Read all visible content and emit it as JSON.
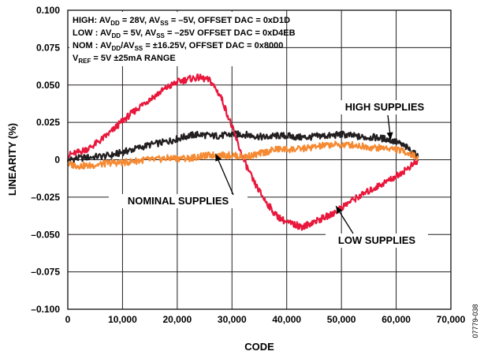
{
  "chart_data": {
    "type": "line",
    "xlabel": "CODE",
    "ylabel": "LINEARITY (%)",
    "xlim": [
      0,
      70000
    ],
    "ylim": [
      -0.1,
      0.1
    ],
    "x_ticks": [
      {
        "value": 0,
        "label": "0"
      },
      {
        "value": 10000,
        "label": "10,000"
      },
      {
        "value": 20000,
        "label": "20,000"
      },
      {
        "value": 30000,
        "label": "30,000"
      },
      {
        "value": 40000,
        "label": "40,000"
      },
      {
        "value": 50000,
        "label": "50,000"
      },
      {
        "value": 60000,
        "label": "60,000"
      },
      {
        "value": 70000,
        "label": "70,000"
      }
    ],
    "y_ticks": [
      {
        "value": 0.1,
        "label": "0.100"
      },
      {
        "value": 0.075,
        "label": "0.075"
      },
      {
        "value": 0.05,
        "label": "0.050"
      },
      {
        "value": 0.025,
        "label": "0.025"
      },
      {
        "value": 0,
        "label": "0"
      },
      {
        "value": -0.025,
        "label": "–0.025"
      },
      {
        "value": -0.05,
        "label": "–0.050"
      },
      {
        "value": -0.075,
        "label": "–0.075"
      },
      {
        "value": -0.1,
        "label": "–0.100"
      }
    ],
    "grid": true,
    "legend_box": [
      {
        "segments": [
          [
            "HIGH: AV",
            "n"
          ],
          [
            "DD",
            "s"
          ],
          [
            " = 28V, AV",
            "n"
          ],
          [
            "SS",
            "s"
          ],
          [
            " = –5V, OFFSET DAC = 0xD1D",
            "n"
          ]
        ]
      },
      {
        "segments": [
          [
            "LOW : AV",
            "n"
          ],
          [
            "DD",
            "s"
          ],
          [
            " = 5V, AV",
            "n"
          ],
          [
            "SS",
            "s"
          ],
          [
            " = –25V OFFSET DAC = 0xD4EB",
            "n"
          ]
        ]
      },
      {
        "segments": [
          [
            "NOM : AV",
            "n"
          ],
          [
            "DD",
            "s"
          ],
          [
            "/AV",
            "n"
          ],
          [
            "SS",
            "s"
          ],
          [
            " = ±16.25V, OFFSET DAC = 0x8000",
            "n"
          ]
        ]
      },
      {
        "segments": [
          [
            "V",
            "n"
          ],
          [
            "REF",
            "s"
          ],
          [
            " = 5V ±25mA RANGE",
            "n"
          ]
        ]
      }
    ],
    "series": [
      {
        "name": "HIGH SUPPLIES",
        "color": "#231f20",
        "x": [
          0,
          2000,
          5000,
          8000,
          10000,
          12000,
          15000,
          18000,
          20000,
          22000,
          24000,
          26000,
          28000,
          30000,
          32000,
          34000,
          36000,
          38000,
          40000,
          42000,
          44000,
          46000,
          48000,
          50000,
          52000,
          54000,
          56000,
          58000,
          60000,
          62000,
          64000
        ],
        "y": [
          0.0,
          0.001,
          0.002,
          0.003,
          0.005,
          0.007,
          0.01,
          0.012,
          0.014,
          0.016,
          0.017,
          0.016,
          0.016,
          0.017,
          0.017,
          0.016,
          0.015,
          0.016,
          0.016,
          0.015,
          0.015,
          0.016,
          0.016,
          0.017,
          0.016,
          0.015,
          0.015,
          0.014,
          0.012,
          0.008,
          0.002
        ]
      },
      {
        "name": "LOW SUPPLIES",
        "color": "#e8173b",
        "x": [
          0,
          2000,
          4000,
          6000,
          8000,
          10000,
          12000,
          14000,
          16000,
          18000,
          20000,
          22000,
          24000,
          26000,
          28000,
          30000,
          32000,
          34000,
          36000,
          38000,
          40000,
          42000,
          43000,
          44000,
          46000,
          48000,
          50000,
          52000,
          54000,
          56000,
          58000,
          60000,
          62000,
          64000
        ],
        "y": [
          0.003,
          0.005,
          0.008,
          0.013,
          0.019,
          0.026,
          0.032,
          0.038,
          0.043,
          0.048,
          0.052,
          0.054,
          0.055,
          0.053,
          0.042,
          0.022,
          0.001,
          -0.015,
          -0.027,
          -0.037,
          -0.042,
          -0.044,
          -0.045,
          -0.043,
          -0.04,
          -0.037,
          -0.032,
          -0.027,
          -0.023,
          -0.019,
          -0.015,
          -0.011,
          -0.006,
          -0.001
        ]
      },
      {
        "name": "NOMINAL SUPPLIES",
        "color": "#f58a33",
        "x": [
          0,
          2000,
          4000,
          6000,
          8000,
          10000,
          12000,
          14000,
          16000,
          18000,
          20000,
          22000,
          24000,
          26000,
          28000,
          30000,
          32000,
          34000,
          36000,
          38000,
          40000,
          42000,
          44000,
          46000,
          48000,
          50000,
          52000,
          54000,
          56000,
          58000,
          60000,
          62000,
          64000
        ],
        "y": [
          -0.003,
          -0.004,
          -0.004,
          -0.003,
          -0.002,
          -0.002,
          -0.001,
          0.0,
          0.0,
          0.001,
          0.001,
          0.001,
          0.002,
          0.003,
          0.003,
          0.003,
          0.002,
          0.003,
          0.005,
          0.007,
          0.007,
          0.007,
          0.008,
          0.009,
          0.01,
          0.01,
          0.01,
          0.009,
          0.008,
          0.008,
          0.007,
          0.005,
          0.001
        ]
      }
    ],
    "annotations": [
      {
        "text": "HIGH SUPPLIES",
        "points_to": {
          "x": 59000,
          "y": 0.0135
        }
      },
      {
        "text": "NOMINAL SUPPLIES",
        "points_to": {
          "x": 27000,
          "y": 0.004
        }
      },
      {
        "text": "LOW SUPPLIES",
        "points_to": {
          "x": 49000,
          "y": -0.031
        }
      }
    ],
    "side_label": "07779-038"
  }
}
